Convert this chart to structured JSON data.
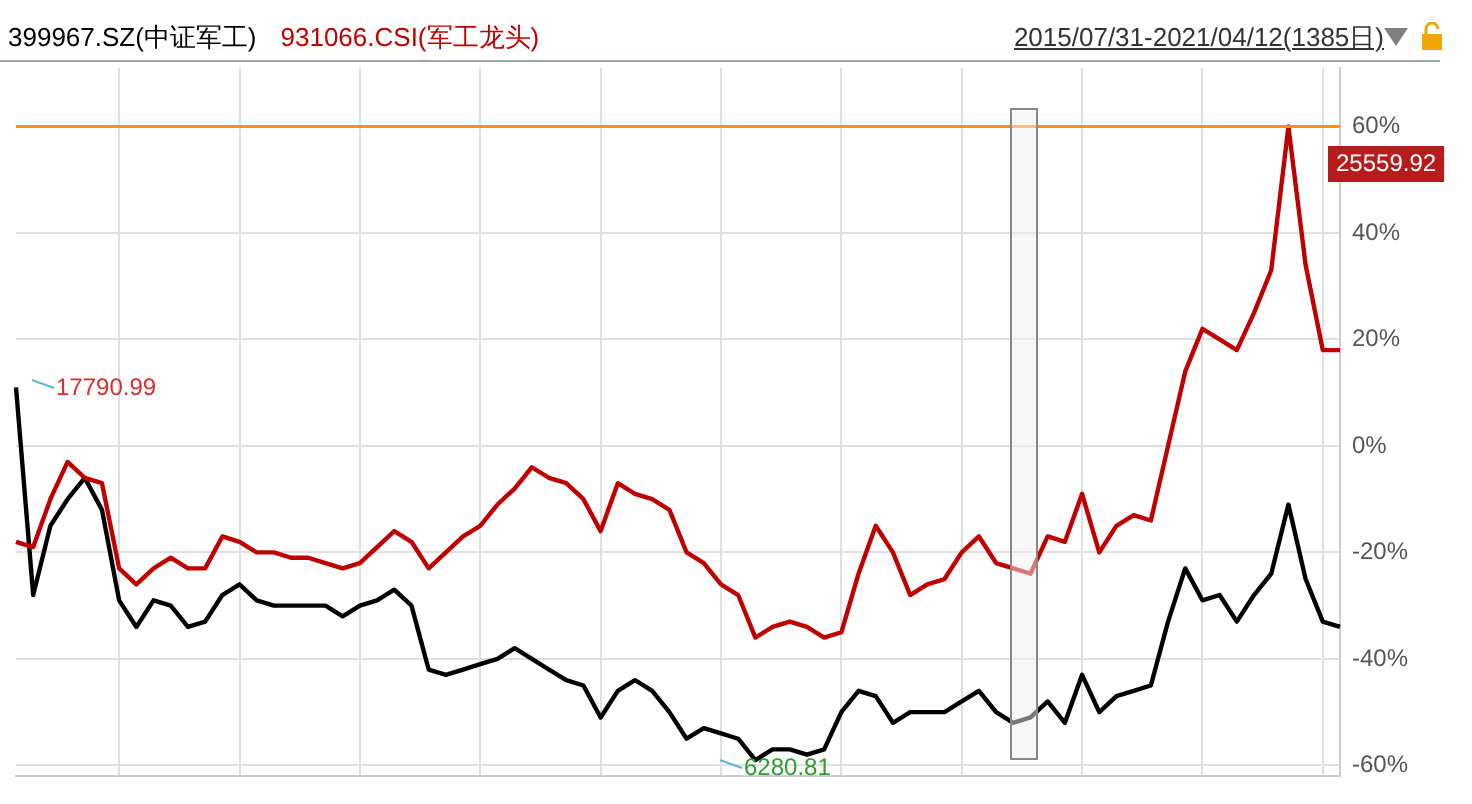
{
  "chart_data": {
    "type": "line",
    "subtitle": "2015/07/31-2021/04/12(1385日)",
    "categories": [
      null,
      null,
      null,
      null,
      null,
      null,
      null,
      null,
      null,
      null,
      null,
      null,
      null,
      null,
      null,
      null,
      null,
      null,
      null,
      null,
      null,
      null,
      null,
      null,
      null,
      null,
      null,
      null,
      null,
      null,
      null,
      null,
      null,
      null,
      null,
      null,
      null,
      null,
      null,
      null,
      null,
      null,
      null,
      null,
      null,
      null,
      null,
      null,
      null,
      null,
      null,
      null,
      null,
      null,
      null,
      null,
      null,
      null,
      null,
      null,
      null,
      null,
      null,
      null,
      null,
      null,
      null,
      null,
      null,
      null,
      null,
      null,
      null,
      null,
      null,
      null,
      null,
      null
    ],
    "series": [
      {
        "name": "399967.SZ(中证军工)",
        "color": "#000000",
        "values": [
          11,
          -28,
          -15,
          -10,
          -6,
          -12,
          -29,
          -34,
          -29,
          -30,
          -34,
          -33,
          -28,
          -26,
          -29,
          -30,
          -30,
          -30,
          -30,
          -32,
          -30,
          -29,
          -27,
          -30,
          -42,
          -43,
          -42,
          -41,
          -40,
          -38,
          -40,
          -42,
          -44,
          -45,
          -51,
          -46,
          -44,
          -46,
          -50,
          -55,
          -53,
          -54,
          -55,
          -59,
          -57,
          -57,
          -58,
          -57,
          -50,
          -46,
          -47,
          -52,
          -50,
          -50,
          -50,
          -48,
          -46,
          -50,
          -52,
          -51,
          -48,
          -52,
          -43,
          -50,
          -47,
          -46,
          -45,
          -33,
          -23,
          -29,
          -28,
          -33,
          -28,
          -24,
          -11,
          -25,
          -33,
          -34
        ]
      },
      {
        "name": "931066.CSI(军工龙头)",
        "color": "#c00000",
        "values": [
          -18,
          -19,
          -10,
          -3,
          -6,
          -7,
          -23,
          -26,
          -23,
          -21,
          -23,
          -23,
          -17,
          -18,
          -20,
          -20,
          -21,
          -21,
          -22,
          -23,
          -22,
          -19,
          -16,
          -18,
          -23,
          -20,
          -17,
          -15,
          -11,
          -8,
          -4,
          -6,
          -7,
          -10,
          -16,
          -7,
          -9,
          -10,
          -12,
          -20,
          -22,
          -26,
          -28,
          -36,
          -34,
          -33,
          -34,
          -36,
          -35,
          -24,
          -15,
          -20,
          -28,
          -26,
          -25,
          -20,
          -17,
          -22,
          -23,
          -24,
          -17,
          -18,
          -9,
          -20,
          -15,
          -13,
          -14,
          0,
          14,
          22,
          20,
          18,
          25,
          33,
          60,
          34,
          18,
          18
        ]
      }
    ],
    "ylim": [
      -62,
      71
    ],
    "yticks": [
      {
        "value": -60,
        "label": "-60%"
      },
      {
        "value": -40,
        "label": "-40%"
      },
      {
        "value": -20,
        "label": "-20%"
      },
      {
        "value": 0,
        "label": "0%"
      },
      {
        "value": 20,
        "label": "20%"
      },
      {
        "value": 40,
        "label": "40%"
      },
      {
        "value": 60,
        "label": "60%"
      }
    ],
    "tick_labels": "y",
    "grid": true,
    "legend": "top left",
    "ref_lines": [
      {
        "axis": "y",
        "value": 60,
        "color": "#ff8c1a"
      }
    ],
    "annotations": [
      "17790.99",
      "6280.81",
      "25559.92"
    ]
  }
}
